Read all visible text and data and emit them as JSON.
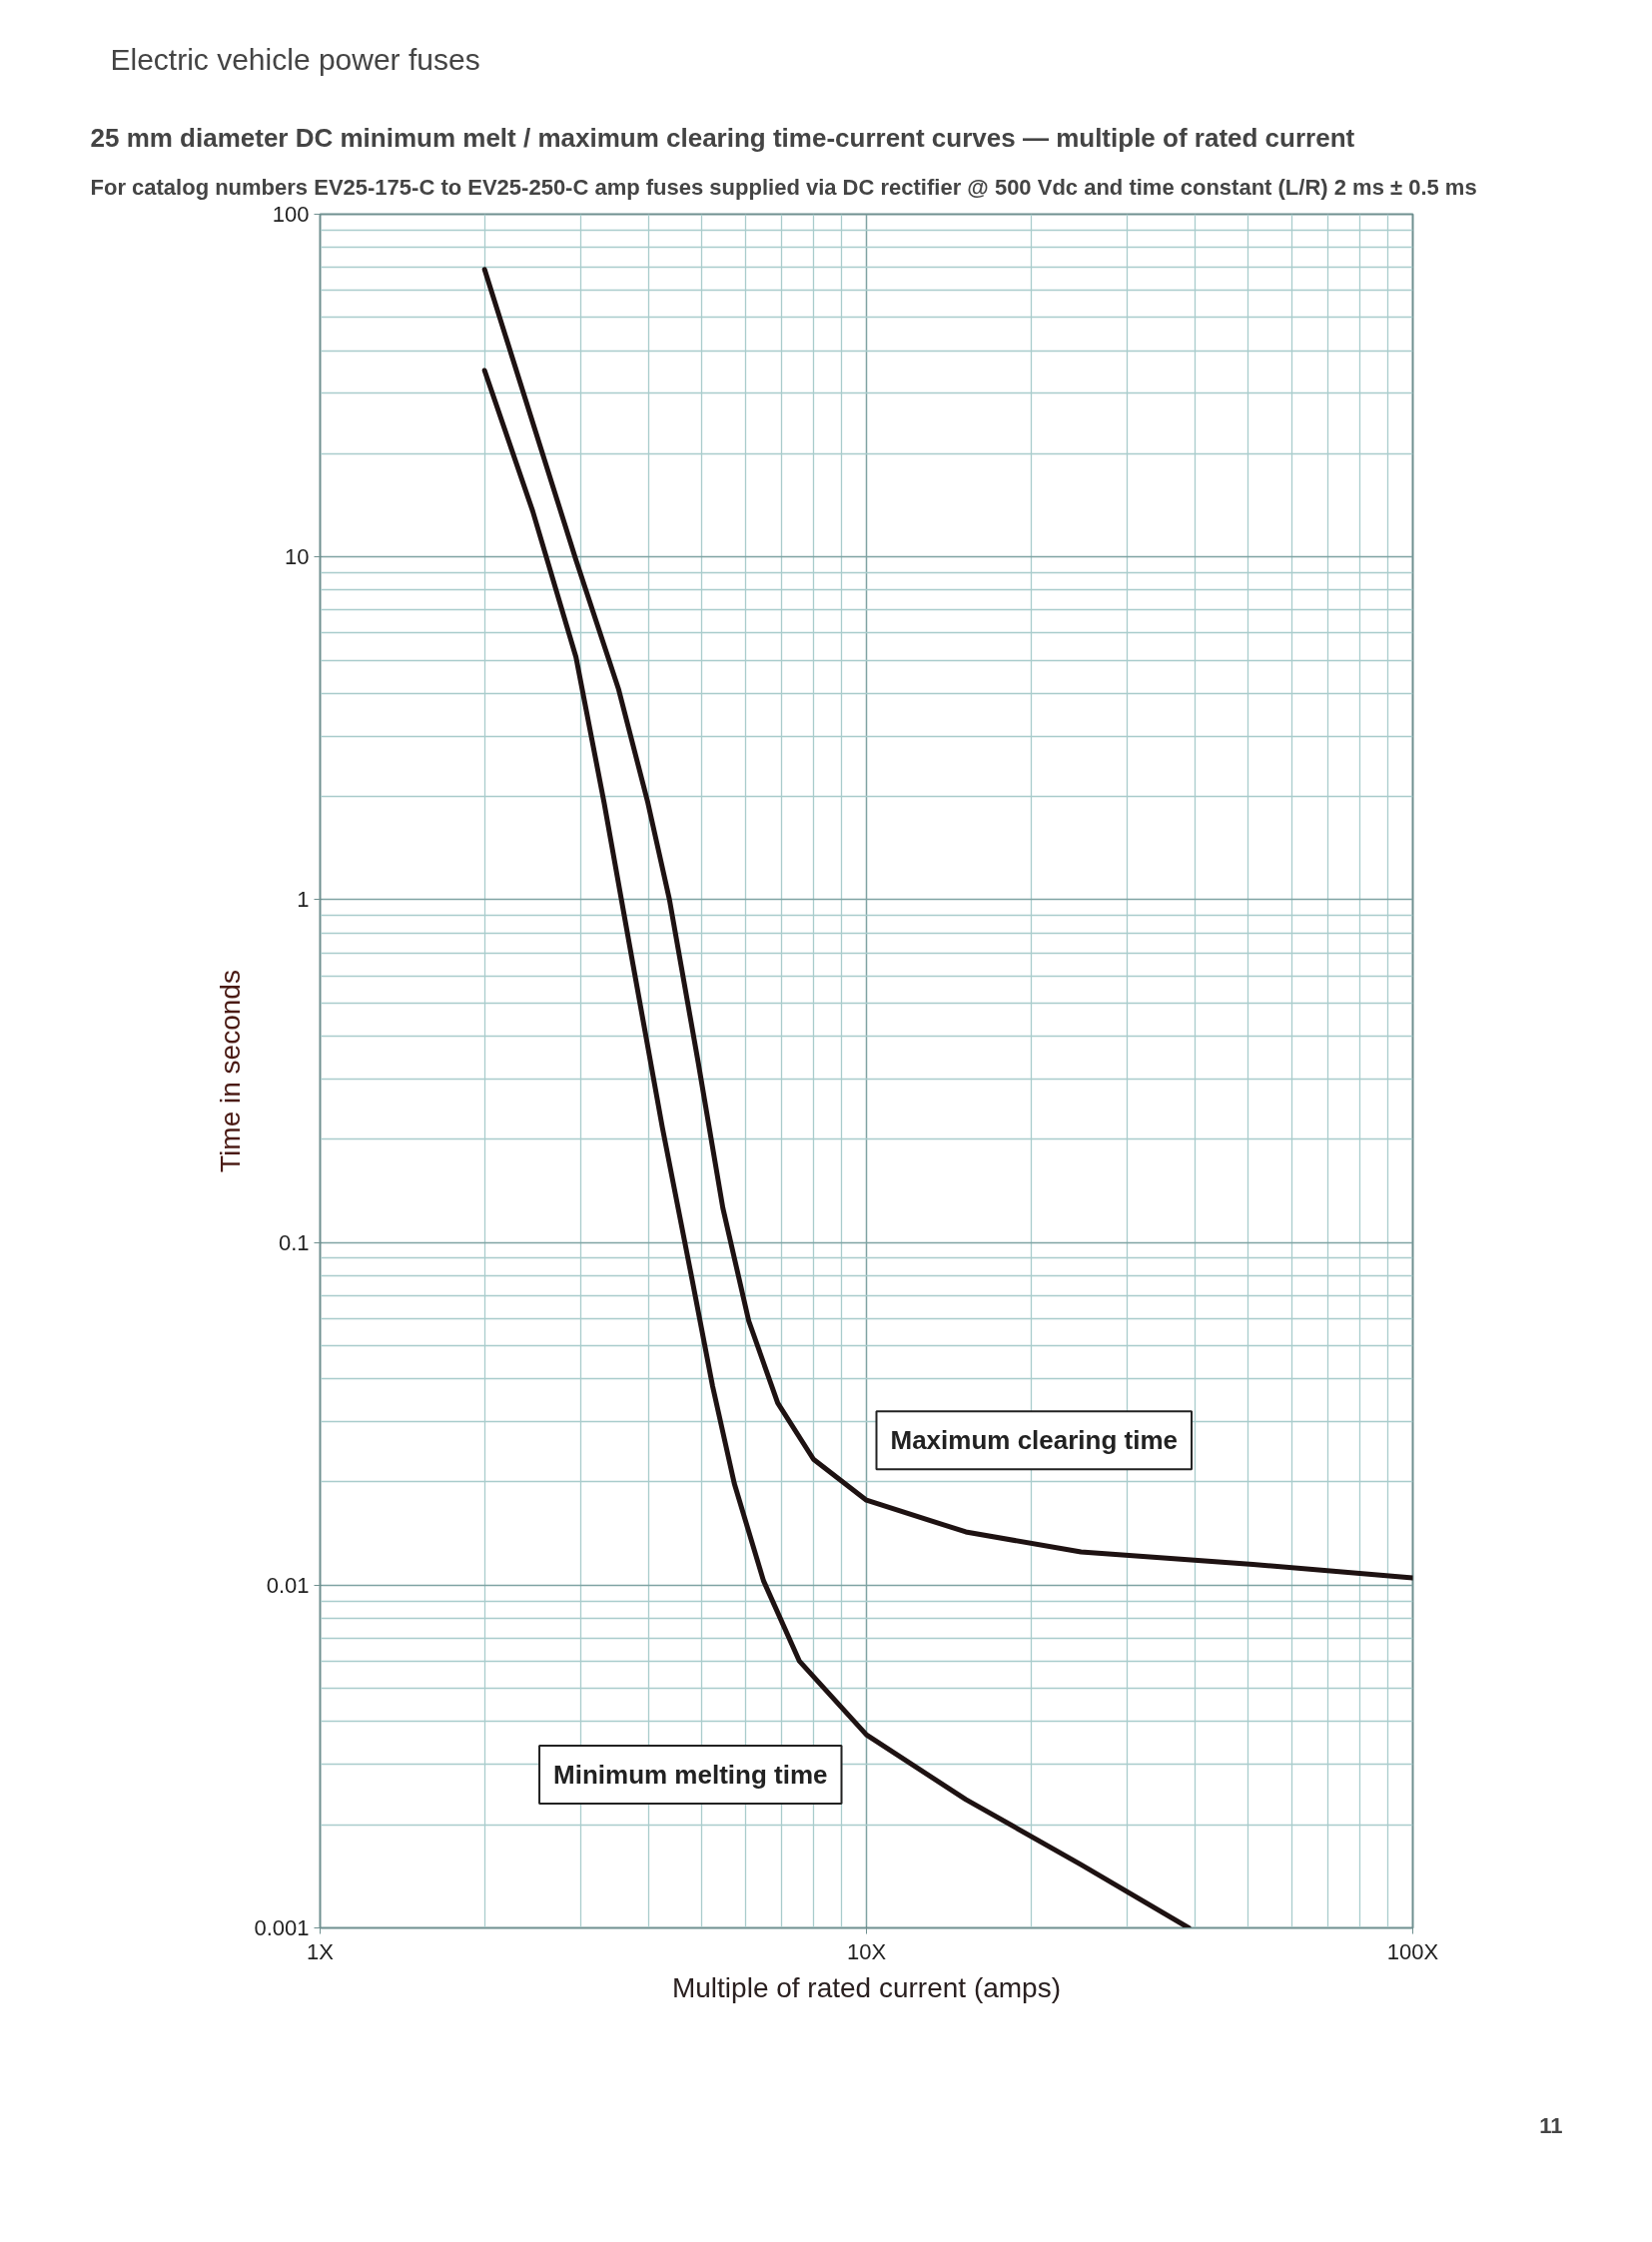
{
  "chart_data": {
    "type": "line",
    "title": "25 mm diameter DC minimum melt / maximum clearing time-current curves — multiple of rated current",
    "subtitle": "For catalog numbers EV25-175-C to EV25-250-C amp fuses supplied via DC rectifier @ 500 Vdc and time constant (L/R) 2 ms ± 0.5 ms",
    "xlabel": "Multiple of rated current (amps)",
    "ylabel": "Time in seconds",
    "log": "xy",
    "grid": true,
    "xlim": [
      1,
      100
    ],
    "ylim": [
      0.001,
      100
    ],
    "xticks": [
      {
        "value": 1,
        "label": "1X"
      },
      {
        "value": 10,
        "label": "10X"
      },
      {
        "value": 100,
        "label": "100X"
      }
    ],
    "yticks": [
      0.001,
      0.01,
      0.1,
      1,
      10,
      100
    ],
    "series": [
      {
        "name": "Maximum clearing time",
        "color": "#1e1212",
        "x": [
          2,
          2.94,
          3.52,
          3.98,
          4.36,
          4.92,
          5.46,
          6.09,
          6.88,
          8.0,
          10,
          15.2,
          24.7,
          51,
          100
        ],
        "values": [
          69,
          9.8,
          4.1,
          1.92,
          1,
          0.336,
          0.126,
          0.059,
          0.034,
          0.0233,
          0.0177,
          0.0143,
          0.0125,
          0.0115,
          0.0105
        ]
      },
      {
        "name": "Minimum melting time",
        "color": "#1e1212",
        "x": [
          2,
          2.45,
          2.94,
          3.31,
          3.74,
          4.23,
          4.77,
          5.23,
          5.73,
          6.48,
          7.54,
          10,
          15.2,
          24.7,
          38.9
        ],
        "values": [
          35,
          13.6,
          5.1,
          1.92,
          0.645,
          0.217,
          0.0815,
          0.038,
          0.0198,
          0.0103,
          0.006,
          0.00366,
          0.00237,
          0.00153,
          0.001
        ]
      }
    ],
    "annotations": [
      "Electric vehicle power fuses",
      "11"
    ]
  }
}
